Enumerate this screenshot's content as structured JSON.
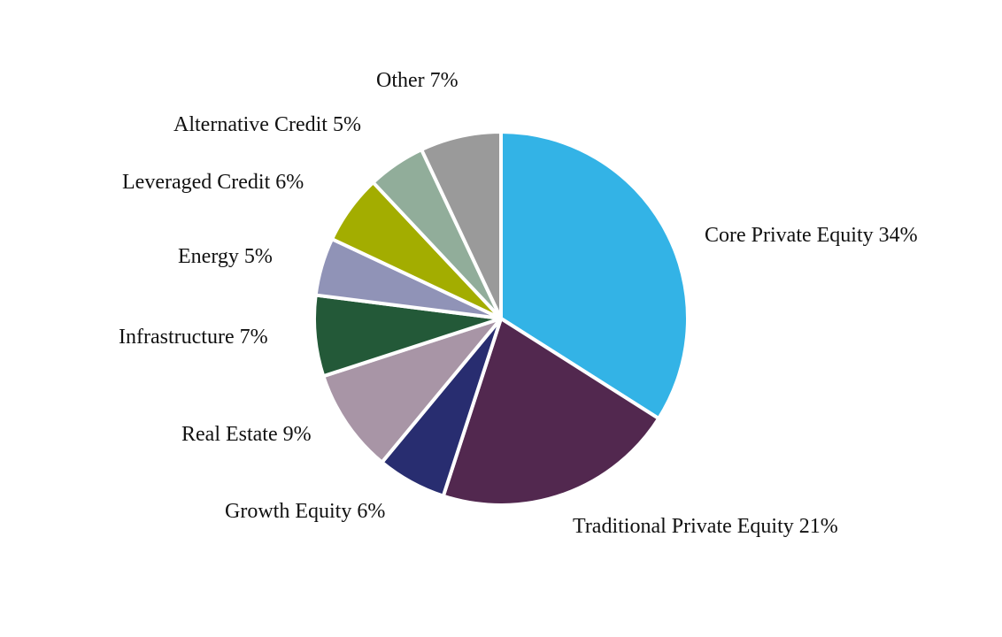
{
  "chart_data": {
    "type": "pie",
    "start_angle_deg": 0,
    "direction": "clockwise",
    "legend": "none",
    "slices": [
      {
        "label": "Core Private Equity 34%",
        "value": 34,
        "color": "#33B3E6"
      },
      {
        "label": "Traditional Private Equity 21%",
        "value": 21,
        "color": "#52284F"
      },
      {
        "label": "Growth Equity 6%",
        "value": 6,
        "color": "#282D70"
      },
      {
        "label": "Real Estate 9%",
        "value": 9,
        "color": "#A895A6"
      },
      {
        "label": "Infrastructure 7%",
        "value": 7,
        "color": "#235938"
      },
      {
        "label": "Energy 5%",
        "value": 5,
        "color": "#9093B7"
      },
      {
        "label": "Leveraged Credit 6%",
        "value": 6,
        "color": "#A3AD00"
      },
      {
        "label": "Alternative Credit 5%",
        "value": 5,
        "color": "#91AD9A"
      },
      {
        "label": "Other 7%",
        "value": 7,
        "color": "#9A9A9A"
      }
    ]
  }
}
